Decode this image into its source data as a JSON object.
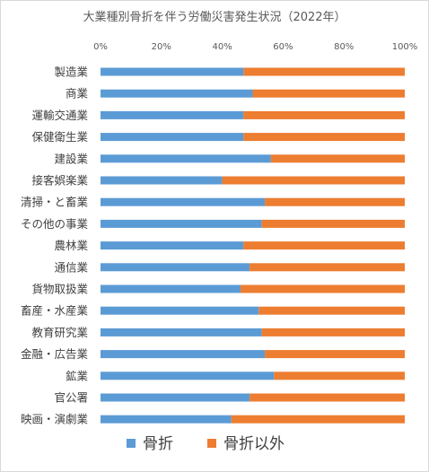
{
  "chart_data": {
    "type": "bar",
    "orientation": "horizontal",
    "stacked": "percent",
    "title": "大業種別骨折を伴う労働災害発生状況（2022年）",
    "x_ticks": [
      "0%",
      "20%",
      "40%",
      "60%",
      "80%",
      "100%"
    ],
    "xlim": [
      0,
      100
    ],
    "grid": false,
    "legend_position": "bottom",
    "categories": [
      "製造業",
      "商業",
      "運輸交通業",
      "保健衛生業",
      "建設業",
      "接客娯楽業",
      "清掃・と畜業",
      "その他の事業",
      "農林業",
      "通信業",
      "貨物取扱業",
      "畜産・水産業",
      "教育研究業",
      "金融・広告業",
      "鉱業",
      "官公署",
      "映画・演劇業"
    ],
    "series": [
      {
        "name": "骨折",
        "color": "#5b9bd5",
        "values": [
          47,
          50,
          47,
          47,
          56,
          40,
          54,
          53,
          47,
          49,
          46,
          52,
          53,
          54,
          57,
          49,
          43
        ]
      },
      {
        "name": "骨折以外",
        "color": "#ed7d31",
        "values": [
          53,
          50,
          53,
          53,
          44,
          60,
          46,
          47,
          53,
          51,
          54,
          48,
          47,
          46,
          43,
          51,
          57
        ]
      }
    ]
  }
}
